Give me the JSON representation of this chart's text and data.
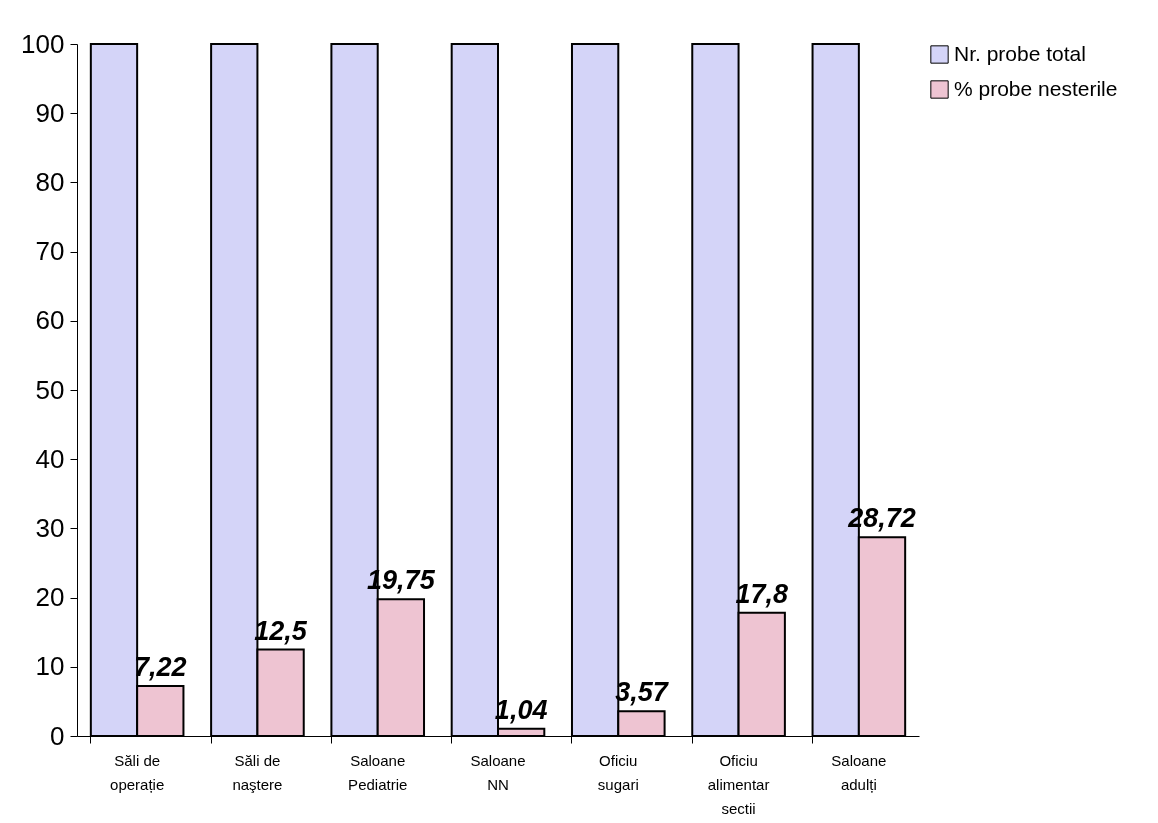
{
  "chart_data": {
    "type": "bar",
    "categories": [
      "Săli de operație",
      "Săli de naştere",
      "Saloane Pediatrie",
      "Saloane NN",
      "Oficiu sugari",
      "Oficiu alimentar sectii",
      "Saloane adulți"
    ],
    "series": [
      {
        "name": "Nr. probe total",
        "color": "#d4d4f8",
        "values": [
          100,
          100,
          100,
          100,
          100,
          100,
          100
        ]
      },
      {
        "name": "% probe nesterile",
        "color": "#eec4d2",
        "values": [
          7.22,
          12.5,
          19.75,
          1.04,
          3.57,
          17.8,
          28.72
        ],
        "value_labels": [
          "7,22",
          "12,5",
          "19,75",
          "1,04",
          "3,57",
          "17,8",
          "28,72"
        ]
      }
    ],
    "ylim": [
      0,
      100
    ],
    "yticks": [
      0,
      10,
      20,
      30,
      40,
      50,
      60,
      70,
      80,
      90,
      100
    ],
    "grid": false,
    "legend": "right"
  }
}
